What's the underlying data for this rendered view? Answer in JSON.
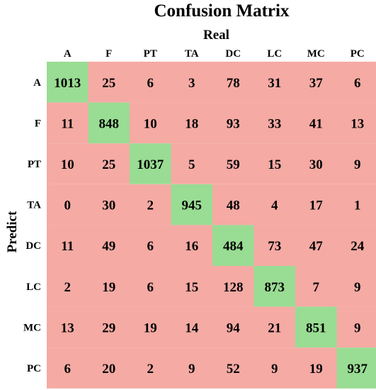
{
  "chart_data": {
    "type": "heatmap",
    "title": "Confusion Matrix",
    "xlabel": "Real",
    "ylabel": "Predict",
    "x_categories": [
      "A",
      "F",
      "PT",
      "TA",
      "DC",
      "LC",
      "MC",
      "PC"
    ],
    "y_categories": [
      "A",
      "F",
      "PT",
      "TA",
      "DC",
      "LC",
      "MC",
      "PC"
    ],
    "values": [
      [
        1013,
        25,
        6,
        3,
        78,
        31,
        37,
        6
      ],
      [
        11,
        848,
        10,
        18,
        93,
        33,
        41,
        13
      ],
      [
        10,
        25,
        1037,
        5,
        59,
        15,
        30,
        9
      ],
      [
        0,
        30,
        2,
        945,
        48,
        4,
        17,
        1
      ],
      [
        11,
        49,
        6,
        16,
        484,
        73,
        47,
        24
      ],
      [
        2,
        19,
        6,
        15,
        128,
        873,
        7,
        9
      ],
      [
        13,
        29,
        19,
        14,
        94,
        21,
        851,
        9
      ],
      [
        6,
        20,
        2,
        9,
        52,
        9,
        19,
        937
      ]
    ],
    "colors": {
      "diagonal": "#99dc93",
      "off_diagonal": "#f5aaa4"
    }
  }
}
